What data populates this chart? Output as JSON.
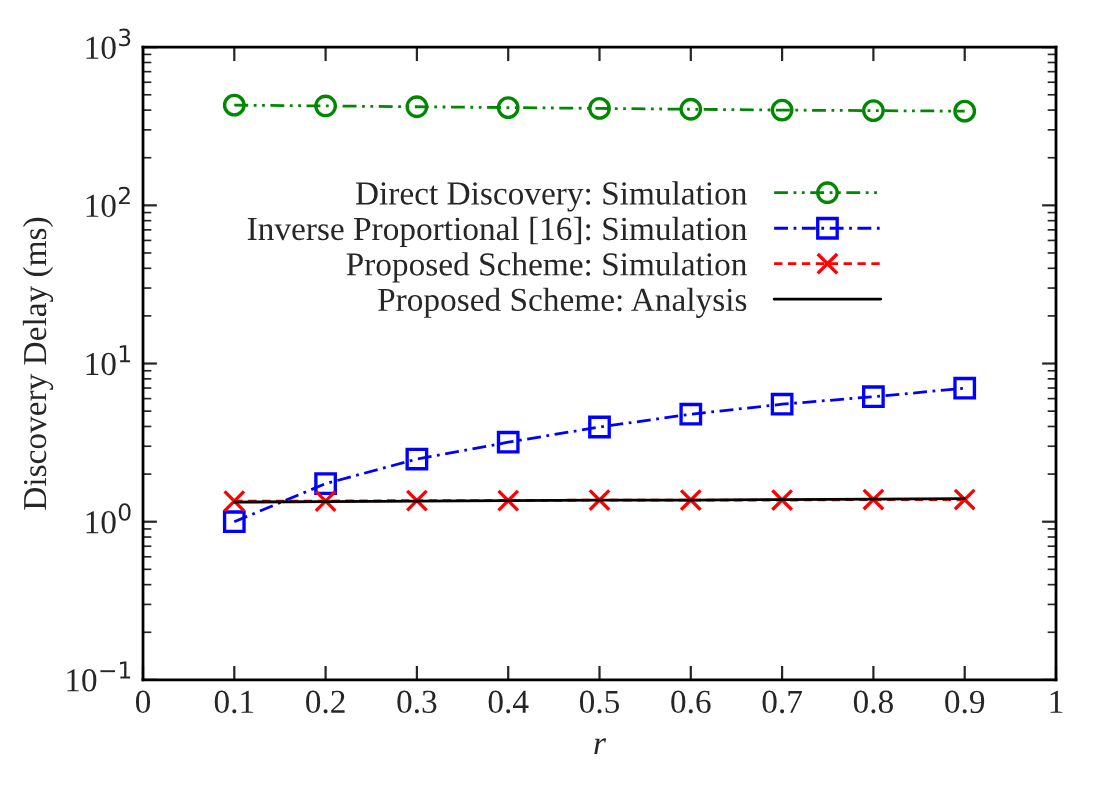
{
  "chart_data": {
    "type": "line",
    "xlabel": "r",
    "ylabel": "Discovery Delay (ms)",
    "log": "y",
    "x": [
      0.1,
      0.2,
      0.3,
      0.4,
      0.5,
      0.6,
      0.7,
      0.8,
      0.9
    ],
    "xlim": [
      0,
      1
    ],
    "xticks": [
      0,
      0.1,
      0.2,
      0.3,
      0.4,
      0.5,
      0.6,
      0.7,
      0.8,
      0.9,
      1
    ],
    "ylim": [
      0.1,
      1000
    ],
    "yticks": [
      {
        "value": 0.1,
        "label": "10$^{−1}$"
      },
      {
        "value": 1,
        "label": "10$^{0}$"
      },
      {
        "value": 10,
        "label": "10$^{1}$"
      },
      {
        "value": 100,
        "label": "10$^{2}$"
      },
      {
        "value": 1000,
        "label": "10$^{3}$"
      }
    ],
    "grid": false,
    "legend": "top right",
    "series": [
      {
        "name": "Direct Discovery: Simulation",
        "color": "#008800",
        "marker": "circle",
        "line_style": "dashdotdot",
        "values": [
          430,
          425,
          420,
          415,
          410,
          405,
          400,
          397,
          394
        ]
      },
      {
        "name": "Inverse Proportional [16]: Simulation",
        "color": "#0000ff",
        "marker": "square",
        "line_style": "dashdot",
        "values": [
          1.0,
          1.74,
          2.49,
          3.18,
          3.97,
          4.78,
          5.53,
          6.17,
          6.98
        ]
      },
      {
        "name": "Proposed Scheme: Simulation",
        "color": "#ff0000",
        "marker": "cross",
        "line_style": "dashed",
        "values": [
          1.35,
          1.35,
          1.36,
          1.36,
          1.37,
          1.37,
          1.37,
          1.38,
          1.38
        ]
      },
      {
        "name": "Proposed Scheme: Analysis",
        "color": "#000000",
        "marker": "none",
        "line_style": "solid",
        "values": [
          1.33,
          1.34,
          1.35,
          1.36,
          1.37,
          1.37,
          1.38,
          1.39,
          1.4
        ]
      }
    ]
  }
}
